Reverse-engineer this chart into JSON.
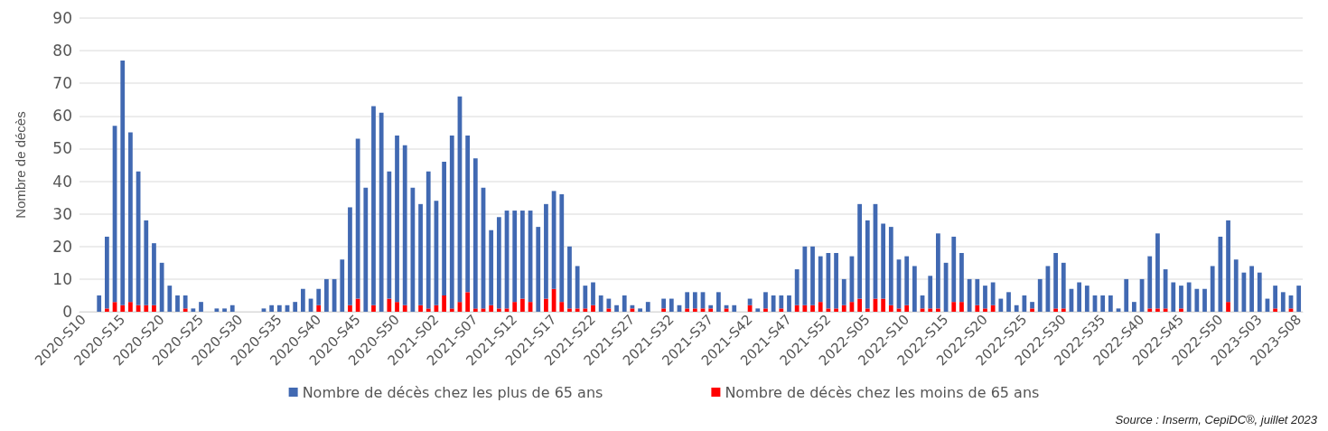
{
  "chart_data": {
    "type": "bar",
    "stacked": true,
    "ylabel": "Nombre de décès",
    "categories": [
      "2020-S10",
      null,
      null,
      null,
      null,
      "2020-S15",
      null,
      null,
      null,
      null,
      "2020-S20",
      null,
      null,
      null,
      null,
      "2020-S25",
      null,
      null,
      null,
      null,
      "2020-S30",
      null,
      null,
      null,
      null,
      "2020-S35",
      null,
      null,
      null,
      null,
      "2020-S40",
      null,
      null,
      null,
      null,
      "2020-S45",
      null,
      null,
      null,
      null,
      "2020-S50",
      null,
      null,
      null,
      null,
      "2021-S02",
      null,
      null,
      null,
      null,
      "2021-S07",
      null,
      null,
      null,
      null,
      "2021-S12",
      null,
      null,
      null,
      null,
      "2021-S17",
      null,
      null,
      null,
      null,
      "2021-S22",
      null,
      null,
      null,
      null,
      "2021-S27",
      null,
      null,
      null,
      null,
      "2021-S32",
      null,
      null,
      null,
      null,
      "2021-S37",
      null,
      null,
      null,
      null,
      "2021-S42",
      null,
      null,
      null,
      null,
      "2021-S47",
      null,
      null,
      null,
      null,
      "2021-S52",
      null,
      null,
      null,
      null,
      "2022-S05",
      null,
      null,
      null,
      null,
      "2022-S10",
      null,
      null,
      null,
      null,
      "2022-S15",
      null,
      null,
      null,
      null,
      "2022-S20",
      null,
      null,
      null,
      null,
      "2022-S25",
      null,
      null,
      null,
      null,
      "2022-S30",
      null,
      null,
      null,
      null,
      "2022-S35",
      null,
      null,
      null,
      null,
      "2022-S40",
      null,
      null,
      null,
      null,
      "2022-S45",
      null,
      null,
      null,
      null,
      "2022-S50",
      null,
      null,
      null,
      null,
      "2023-S03",
      null,
      null,
      null,
      null,
      "2023-S08"
    ],
    "series": [
      {
        "name": "Nombre de décès chez les moins de 65 ans",
        "color": "#ff0000",
        "values": [
          0,
          0,
          0,
          1,
          3,
          2,
          3,
          2,
          2,
          2,
          0,
          0,
          0,
          1,
          0,
          0,
          0,
          0,
          0,
          0,
          0,
          0,
          0,
          0,
          0,
          0,
          0,
          0,
          0,
          0,
          2,
          0,
          0,
          0,
          2,
          4,
          0,
          2,
          0,
          4,
          3,
          2,
          0,
          2,
          1,
          2,
          5,
          1,
          3,
          6,
          1,
          1,
          2,
          1,
          1,
          3,
          4,
          3,
          0,
          4,
          7,
          3,
          1,
          1,
          1,
          2,
          0,
          1,
          0,
          0,
          1,
          0,
          0,
          0,
          1,
          0,
          0,
          1,
          1,
          1,
          1,
          0,
          1,
          0,
          0,
          2,
          0,
          1,
          0,
          1,
          0,
          2,
          2,
          2,
          3,
          1,
          1,
          2,
          3,
          4,
          1,
          4,
          4,
          2,
          1,
          2,
          0,
          1,
          1,
          1,
          0,
          3,
          3,
          0,
          2,
          1,
          2,
          0,
          0,
          0,
          0,
          1,
          0,
          0,
          1,
          1,
          0,
          0,
          0,
          0,
          0,
          0,
          0,
          0,
          0,
          0,
          1,
          1,
          1,
          0,
          1,
          0,
          0,
          0,
          0,
          0,
          3,
          0,
          0,
          0,
          0,
          0,
          1,
          0,
          1,
          0
        ]
      },
      {
        "name": "Nombre de décès chez les plus de 65 ans",
        "color": "#4169b2",
        "values": [
          0,
          0,
          5,
          22,
          54,
          75,
          52,
          41,
          26,
          19,
          15,
          8,
          5,
          4,
          1,
          3,
          0,
          1,
          1,
          2,
          0,
          0,
          0,
          1,
          2,
          2,
          2,
          3,
          7,
          4,
          5,
          10,
          10,
          16,
          30,
          49,
          38,
          61,
          61,
          39,
          51,
          49,
          38,
          31,
          42,
          32,
          41,
          53,
          63,
          48,
          46,
          37,
          23,
          28,
          30,
          28,
          27,
          28,
          26,
          29,
          30,
          33,
          19,
          13,
          7,
          7,
          5,
          3,
          2,
          5,
          1,
          1,
          3,
          0,
          3,
          4,
          2,
          5,
          5,
          5,
          1,
          6,
          1,
          2,
          0,
          2,
          1,
          5,
          5,
          4,
          5,
          11,
          18,
          18,
          14,
          17,
          17,
          8,
          14,
          29,
          27,
          29,
          23,
          24,
          15,
          15,
          14,
          4,
          10,
          23,
          15,
          20,
          15,
          10,
          8,
          7,
          7,
          4,
          6,
          2,
          5,
          2,
          10,
          14,
          17,
          14,
          7,
          9,
          8,
          5,
          5,
          5,
          1,
          10,
          3,
          10,
          16,
          23,
          12,
          9,
          7,
          9,
          7,
          7,
          14,
          23,
          25,
          16,
          12,
          14,
          12,
          4,
          7,
          6,
          4,
          8
        ]
      }
    ],
    "ylim": [
      0,
      90
    ],
    "yticks": [
      0,
      10,
      20,
      30,
      40,
      50,
      60,
      70,
      80,
      90
    ],
    "grid": "y",
    "legend": "bottom",
    "annotations": [
      "Source : Inserm, CepiDC®, juillet 2023"
    ]
  }
}
